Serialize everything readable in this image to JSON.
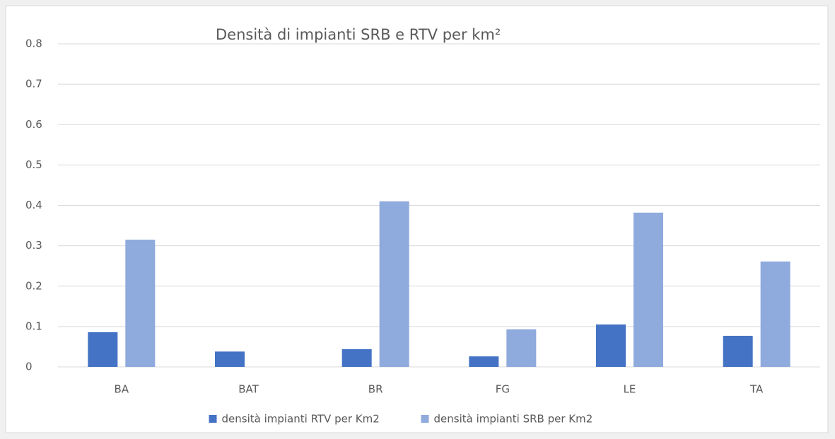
{
  "chart_data": {
    "type": "bar",
    "title": "Densità di impianti SRB e RTV per km²",
    "categories": [
      "BA",
      "BAT",
      "BR",
      "FG",
      "LE",
      "TA"
    ],
    "series": [
      {
        "name": "densità impianti RTV per Km2",
        "color": "#4472c4",
        "values": [
          0.086,
          0.038,
          0.044,
          0.026,
          0.105,
          0.077
        ]
      },
      {
        "name": "densità impianti SRB per Km2",
        "color": "#8faadc",
        "values": [
          0.315,
          null,
          0.41,
          0.093,
          0.382,
          0.261
        ]
      }
    ],
    "ylim": [
      0,
      0.8
    ],
    "yticks": [
      0,
      0.1,
      0.2,
      0.3,
      0.4,
      0.5,
      0.6,
      0.7,
      0.8
    ],
    "grid": true,
    "legend": "bottom"
  }
}
